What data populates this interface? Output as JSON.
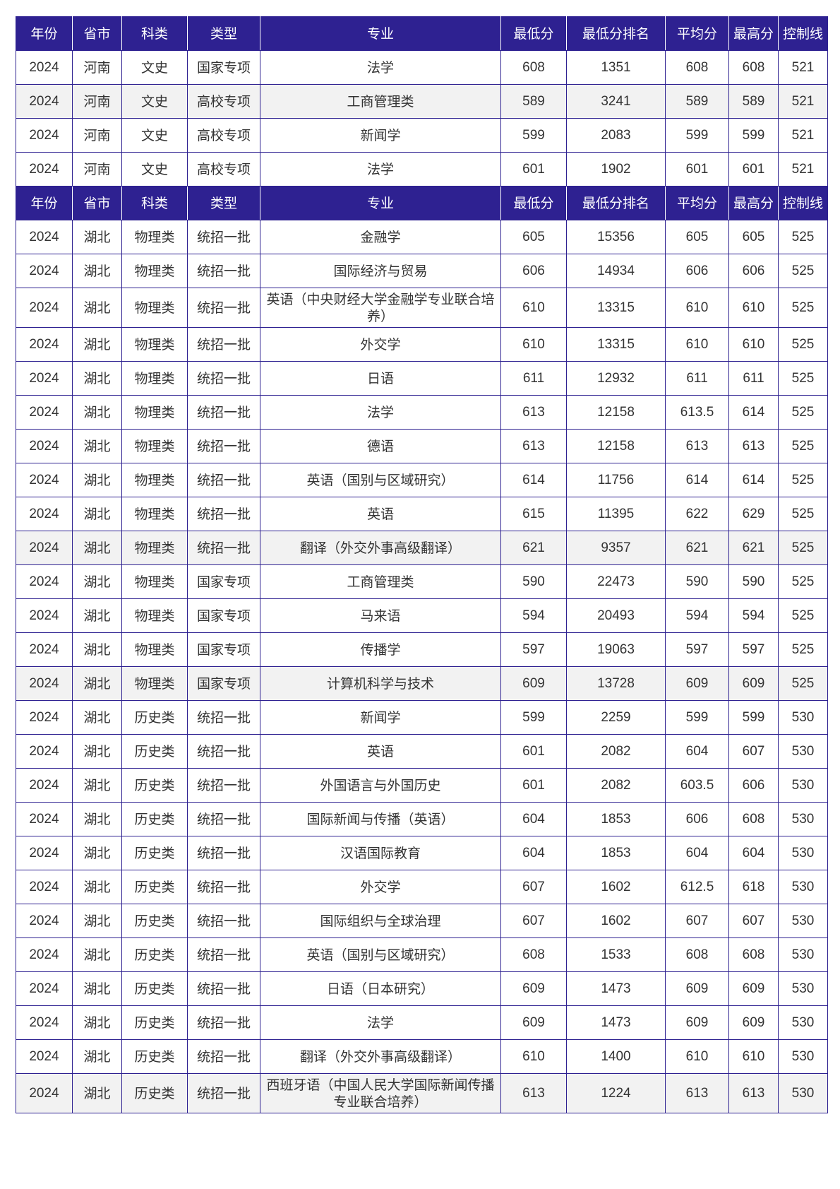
{
  "colors": {
    "header_bg": "#2e2191",
    "header_text": "#ffffff",
    "border": "#2e2191",
    "alt_row_bg": "#f2f2f2",
    "text": "#333333"
  },
  "headers": [
    "年份",
    "省市",
    "科类",
    "类型",
    "专业",
    "最低分",
    "最低分排名",
    "平均分",
    "最高分",
    "控制线"
  ],
  "sections": [
    {
      "rows": [
        {
          "year": "2024",
          "province": "河南",
          "subject": "文史",
          "type": "国家专项",
          "major": "法学",
          "min": "608",
          "min_rank": "1351",
          "avg": "608",
          "max": "608",
          "control": "521",
          "alt": false
        },
        {
          "year": "2024",
          "province": "河南",
          "subject": "文史",
          "type": "高校专项",
          "major": "工商管理类",
          "min": "589",
          "min_rank": "3241",
          "avg": "589",
          "max": "589",
          "control": "521",
          "alt": true
        },
        {
          "year": "2024",
          "province": "河南",
          "subject": "文史",
          "type": "高校专项",
          "major": "新闻学",
          "min": "599",
          "min_rank": "2083",
          "avg": "599",
          "max": "599",
          "control": "521",
          "alt": false
        },
        {
          "year": "2024",
          "province": "河南",
          "subject": "文史",
          "type": "高校专项",
          "major": "法学",
          "min": "601",
          "min_rank": "1902",
          "avg": "601",
          "max": "601",
          "control": "521",
          "alt": false
        }
      ]
    },
    {
      "rows": [
        {
          "year": "2024",
          "province": "湖北",
          "subject": "物理类",
          "type": "统招一批",
          "major": "金融学",
          "min": "605",
          "min_rank": "15356",
          "avg": "605",
          "max": "605",
          "control": "525",
          "alt": false
        },
        {
          "year": "2024",
          "province": "湖北",
          "subject": "物理类",
          "type": "统招一批",
          "major": "国际经济与贸易",
          "min": "606",
          "min_rank": "14934",
          "avg": "606",
          "max": "606",
          "control": "525",
          "alt": false
        },
        {
          "year": "2024",
          "province": "湖北",
          "subject": "物理类",
          "type": "统招一批",
          "major": "英语（中央财经大学金融学专业联合培养）",
          "min": "610",
          "min_rank": "13315",
          "avg": "610",
          "max": "610",
          "control": "525",
          "alt": false,
          "tall": true
        },
        {
          "year": "2024",
          "province": "湖北",
          "subject": "物理类",
          "type": "统招一批",
          "major": "外交学",
          "min": "610",
          "min_rank": "13315",
          "avg": "610",
          "max": "610",
          "control": "525",
          "alt": false
        },
        {
          "year": "2024",
          "province": "湖北",
          "subject": "物理类",
          "type": "统招一批",
          "major": "日语",
          "min": "611",
          "min_rank": "12932",
          "avg": "611",
          "max": "611",
          "control": "525",
          "alt": false
        },
        {
          "year": "2024",
          "province": "湖北",
          "subject": "物理类",
          "type": "统招一批",
          "major": "法学",
          "min": "613",
          "min_rank": "12158",
          "avg": "613.5",
          "max": "614",
          "control": "525",
          "alt": false
        },
        {
          "year": "2024",
          "province": "湖北",
          "subject": "物理类",
          "type": "统招一批",
          "major": "德语",
          "min": "613",
          "min_rank": "12158",
          "avg": "613",
          "max": "613",
          "control": "525",
          "alt": false
        },
        {
          "year": "2024",
          "province": "湖北",
          "subject": "物理类",
          "type": "统招一批",
          "major": "英语（国别与区域研究）",
          "min": "614",
          "min_rank": "11756",
          "avg": "614",
          "max": "614",
          "control": "525",
          "alt": false
        },
        {
          "year": "2024",
          "province": "湖北",
          "subject": "物理类",
          "type": "统招一批",
          "major": "英语",
          "min": "615",
          "min_rank": "11395",
          "avg": "622",
          "max": "629",
          "control": "525",
          "alt": false
        },
        {
          "year": "2024",
          "province": "湖北",
          "subject": "物理类",
          "type": "统招一批",
          "major": "翻译（外交外事高级翻译）",
          "min": "621",
          "min_rank": "9357",
          "avg": "621",
          "max": "621",
          "control": "525",
          "alt": true
        },
        {
          "year": "2024",
          "province": "湖北",
          "subject": "物理类",
          "type": "国家专项",
          "major": "工商管理类",
          "min": "590",
          "min_rank": "22473",
          "avg": "590",
          "max": "590",
          "control": "525",
          "alt": false
        },
        {
          "year": "2024",
          "province": "湖北",
          "subject": "物理类",
          "type": "国家专项",
          "major": "马来语",
          "min": "594",
          "min_rank": "20493",
          "avg": "594",
          "max": "594",
          "control": "525",
          "alt": false
        },
        {
          "year": "2024",
          "province": "湖北",
          "subject": "物理类",
          "type": "国家专项",
          "major": "传播学",
          "min": "597",
          "min_rank": "19063",
          "avg": "597",
          "max": "597",
          "control": "525",
          "alt": false
        },
        {
          "year": "2024",
          "province": "湖北",
          "subject": "物理类",
          "type": "国家专项",
          "major": "计算机科学与技术",
          "min": "609",
          "min_rank": "13728",
          "avg": "609",
          "max": "609",
          "control": "525",
          "alt": true
        },
        {
          "year": "2024",
          "province": "湖北",
          "subject": "历史类",
          "type": "统招一批",
          "major": "新闻学",
          "min": "599",
          "min_rank": "2259",
          "avg": "599",
          "max": "599",
          "control": "530",
          "alt": false
        },
        {
          "year": "2024",
          "province": "湖北",
          "subject": "历史类",
          "type": "统招一批",
          "major": "英语",
          "min": "601",
          "min_rank": "2082",
          "avg": "604",
          "max": "607",
          "control": "530",
          "alt": false
        },
        {
          "year": "2024",
          "province": "湖北",
          "subject": "历史类",
          "type": "统招一批",
          "major": "外国语言与外国历史",
          "min": "601",
          "min_rank": "2082",
          "avg": "603.5",
          "max": "606",
          "control": "530",
          "alt": false
        },
        {
          "year": "2024",
          "province": "湖北",
          "subject": "历史类",
          "type": "统招一批",
          "major": "国际新闻与传播（英语）",
          "min": "604",
          "min_rank": "1853",
          "avg": "606",
          "max": "608",
          "control": "530",
          "alt": false
        },
        {
          "year": "2024",
          "province": "湖北",
          "subject": "历史类",
          "type": "统招一批",
          "major": "汉语国际教育",
          "min": "604",
          "min_rank": "1853",
          "avg": "604",
          "max": "604",
          "control": "530",
          "alt": false
        },
        {
          "year": "2024",
          "province": "湖北",
          "subject": "历史类",
          "type": "统招一批",
          "major": "外交学",
          "min": "607",
          "min_rank": "1602",
          "avg": "612.5",
          "max": "618",
          "control": "530",
          "alt": false
        },
        {
          "year": "2024",
          "province": "湖北",
          "subject": "历史类",
          "type": "统招一批",
          "major": "国际组织与全球治理",
          "min": "607",
          "min_rank": "1602",
          "avg": "607",
          "max": "607",
          "control": "530",
          "alt": false
        },
        {
          "year": "2024",
          "province": "湖北",
          "subject": "历史类",
          "type": "统招一批",
          "major": "英语（国别与区域研究）",
          "min": "608",
          "min_rank": "1533",
          "avg": "608",
          "max": "608",
          "control": "530",
          "alt": false
        },
        {
          "year": "2024",
          "province": "湖北",
          "subject": "历史类",
          "type": "统招一批",
          "major": "日语（日本研究）",
          "min": "609",
          "min_rank": "1473",
          "avg": "609",
          "max": "609",
          "control": "530",
          "alt": false
        },
        {
          "year": "2024",
          "province": "湖北",
          "subject": "历史类",
          "type": "统招一批",
          "major": "法学",
          "min": "609",
          "min_rank": "1473",
          "avg": "609",
          "max": "609",
          "control": "530",
          "alt": false
        },
        {
          "year": "2024",
          "province": "湖北",
          "subject": "历史类",
          "type": "统招一批",
          "major": "翻译（外交外事高级翻译）",
          "min": "610",
          "min_rank": "1400",
          "avg": "610",
          "max": "610",
          "control": "530",
          "alt": false
        },
        {
          "year": "2024",
          "province": "湖北",
          "subject": "历史类",
          "type": "统招一批",
          "major": "西班牙语（中国人民大学国际新闻传播专业联合培养）",
          "min": "613",
          "min_rank": "1224",
          "avg": "613",
          "max": "613",
          "control": "530",
          "alt": true,
          "tall": true
        }
      ]
    }
  ]
}
